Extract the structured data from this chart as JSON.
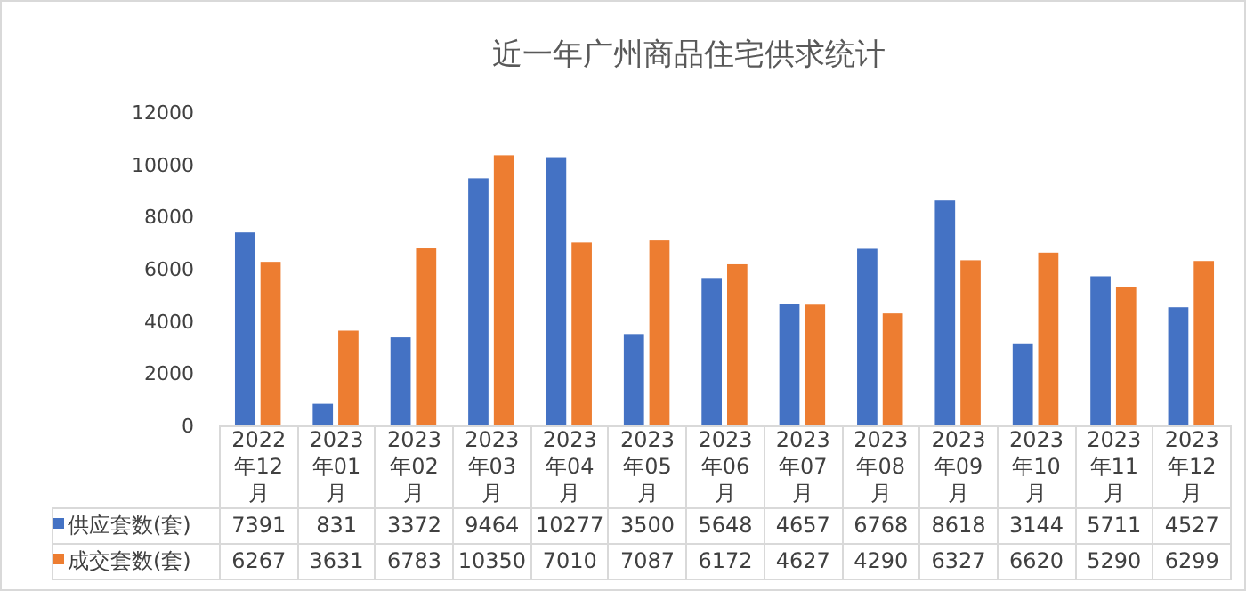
{
  "chart_data": {
    "type": "bar",
    "title": "近一年广州商品住宅供求统计",
    "categories": [
      "2022年12月",
      "2023年01月",
      "2023年02月",
      "2023年03月",
      "2023年04月",
      "2023年05月",
      "2023年06月",
      "2023年07月",
      "2023年08月",
      "2023年09月",
      "2023年10月",
      "2023年11月",
      "2023年12月"
    ],
    "series": [
      {
        "name": "供应套数(套)",
        "color": "#4472c4",
        "values": [
          7391,
          831,
          3372,
          9464,
          10277,
          3500,
          5648,
          4657,
          6768,
          8618,
          3144,
          5711,
          4527
        ]
      },
      {
        "name": "成交套数(套)",
        "color": "#ed7d31",
        "values": [
          6267,
          3631,
          6783,
          10350,
          7010,
          7087,
          6172,
          4627,
          4290,
          6327,
          6620,
          5290,
          6299
        ]
      }
    ],
    "ylim": [
      0,
      12000
    ],
    "yticks": [
      0,
      2000,
      4000,
      6000,
      8000,
      10000,
      12000
    ],
    "data_labels": true,
    "legend": "bottom",
    "grid": false
  }
}
